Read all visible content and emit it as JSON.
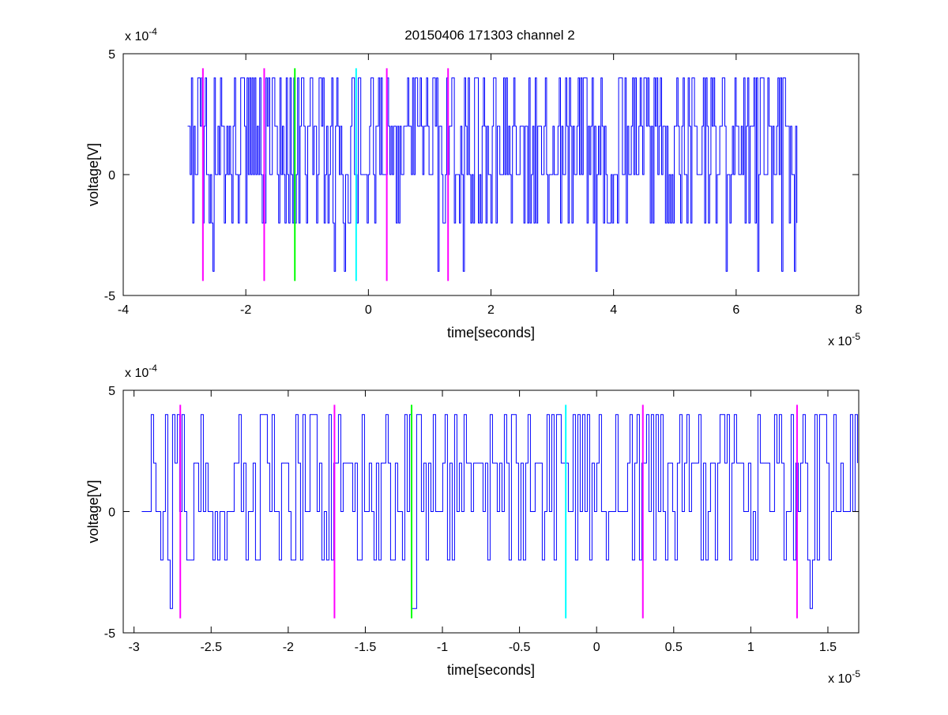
{
  "figure": {
    "title": "20150406 171303 channel 2"
  },
  "chart_data": [
    {
      "type": "line",
      "title": "20150406 171303 channel 2",
      "xlabel": "time[seconds]",
      "ylabel": "voltage[V]",
      "x_multiplier_label": "x 10",
      "x_multiplier_exp": "-5",
      "y_multiplier_label": "x 10",
      "y_multiplier_exp": "-4",
      "xlim": [
        -4,
        8
      ],
      "ylim": [
        -5,
        5
      ],
      "x_ticks": [
        -4,
        -2,
        0,
        2,
        4,
        6,
        8
      ],
      "y_ticks": [
        -5,
        0,
        5
      ],
      "x_tick_labels": [
        "-4",
        "-2",
        "0",
        "2",
        "4",
        "6",
        "8"
      ],
      "y_tick_labels": [
        "-5",
        "0",
        "5"
      ],
      "signal_color": "#0000ff",
      "signal_x_range": [
        -2.95,
        7.0
      ],
      "signal_levels": [
        -4,
        -2,
        0,
        2,
        4
      ],
      "markers": [
        {
          "x": -2.7,
          "color": "#ff00ff",
          "y_range": [
            -4.4,
            4.4
          ]
        },
        {
          "x": -1.7,
          "color": "#ff00ff",
          "y_range": [
            -4.4,
            4.4
          ]
        },
        {
          "x": -1.2,
          "color": "#00ff00",
          "y_range": [
            -4.4,
            4.4
          ]
        },
        {
          "x": -0.2,
          "color": "#00ffff",
          "y_range": [
            -4.4,
            4.4
          ]
        },
        {
          "x": 0.3,
          "color": "#ff00ff",
          "y_range": [
            -4.4,
            4.4
          ]
        },
        {
          "x": 1.3,
          "color": "#ff00ff",
          "y_range": [
            -4.4,
            4.4
          ]
        }
      ],
      "grid": false
    },
    {
      "type": "line",
      "xlabel": "time[seconds]",
      "ylabel": "voltage[V]",
      "x_multiplier_label": "x 10",
      "x_multiplier_exp": "-5",
      "y_multiplier_label": "x 10",
      "y_multiplier_exp": "-4",
      "xlim": [
        -3.07,
        1.7
      ],
      "ylim": [
        -5,
        5
      ],
      "x_ticks": [
        -3,
        -2.5,
        -2,
        -1.5,
        -1,
        -0.5,
        0,
        0.5,
        1,
        1.5
      ],
      "y_ticks": [
        -5,
        0,
        5
      ],
      "x_tick_labels": [
        "-3",
        "-2.5",
        "-2",
        "-1.5",
        "-1",
        "-0.5",
        "0",
        "0.5",
        "1",
        "1.5"
      ],
      "y_tick_labels": [
        "-5",
        "0",
        "5"
      ],
      "signal_color": "#0000ff",
      "signal_x_range": [
        -2.95,
        1.7
      ],
      "signal_levels": [
        -4,
        -2,
        0,
        2,
        4
      ],
      "markers": [
        {
          "x": -2.7,
          "color": "#ff00ff",
          "y_range": [
            -4.4,
            4.4
          ]
        },
        {
          "x": -1.7,
          "color": "#ff00ff",
          "y_range": [
            -4.4,
            4.4
          ]
        },
        {
          "x": -1.2,
          "color": "#00ff00",
          "y_range": [
            -4.4,
            4.4
          ]
        },
        {
          "x": -0.2,
          "color": "#00ffff",
          "y_range": [
            -4.4,
            4.4
          ]
        },
        {
          "x": 0.3,
          "color": "#ff00ff",
          "y_range": [
            -4.4,
            4.4
          ]
        },
        {
          "x": 1.3,
          "color": "#ff00ff",
          "y_range": [
            -4.4,
            4.4
          ]
        }
      ],
      "grid": false
    }
  ]
}
